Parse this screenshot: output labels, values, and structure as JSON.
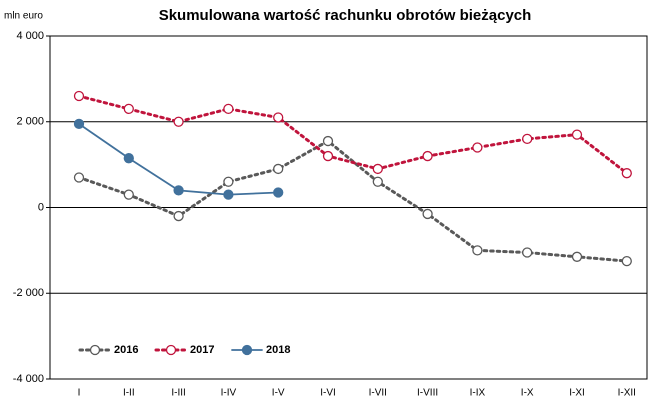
{
  "chart_data": {
    "type": "line",
    "title": "Skumulowana wartość rachunku obrotów bieżących",
    "ylabel": "mln euro",
    "categories": [
      "I",
      "I-II",
      "I-III",
      "I-IV",
      "I-V",
      "I-VI",
      "I-VII",
      "I-VIII",
      "I-IX",
      "I-X",
      "I-XI",
      "I-XII"
    ],
    "series": [
      {
        "name": "2016",
        "color": "#595959",
        "style": "dotted",
        "marker": "open",
        "values": [
          700,
          300,
          -200,
          600,
          900,
          1550,
          600,
          -150,
          -1000,
          -1050,
          -1150,
          -1250
        ]
      },
      {
        "name": "2017",
        "color": "#c0143c",
        "style": "dotted",
        "marker": "open",
        "values": [
          2600,
          2300,
          2000,
          2300,
          2100,
          1200,
          900,
          1200,
          1400,
          1600,
          1700,
          800
        ]
      },
      {
        "name": "2018",
        "color": "#41719c",
        "style": "solid",
        "marker": "filled",
        "values": [
          1950,
          1150,
          400,
          300,
          350,
          null,
          null,
          null,
          null,
          null,
          null,
          null
        ]
      }
    ],
    "ylim": [
      -4000,
      4000
    ],
    "yticks": [
      {
        "value": -4000,
        "label": "-4 000"
      },
      {
        "value": -2000,
        "label": "-2 000"
      },
      0,
      {
        "value": 2000,
        "label": "2 000"
      },
      {
        "value": 4000,
        "label": "4 000"
      }
    ],
    "grid": true,
    "legend": "lower left"
  }
}
